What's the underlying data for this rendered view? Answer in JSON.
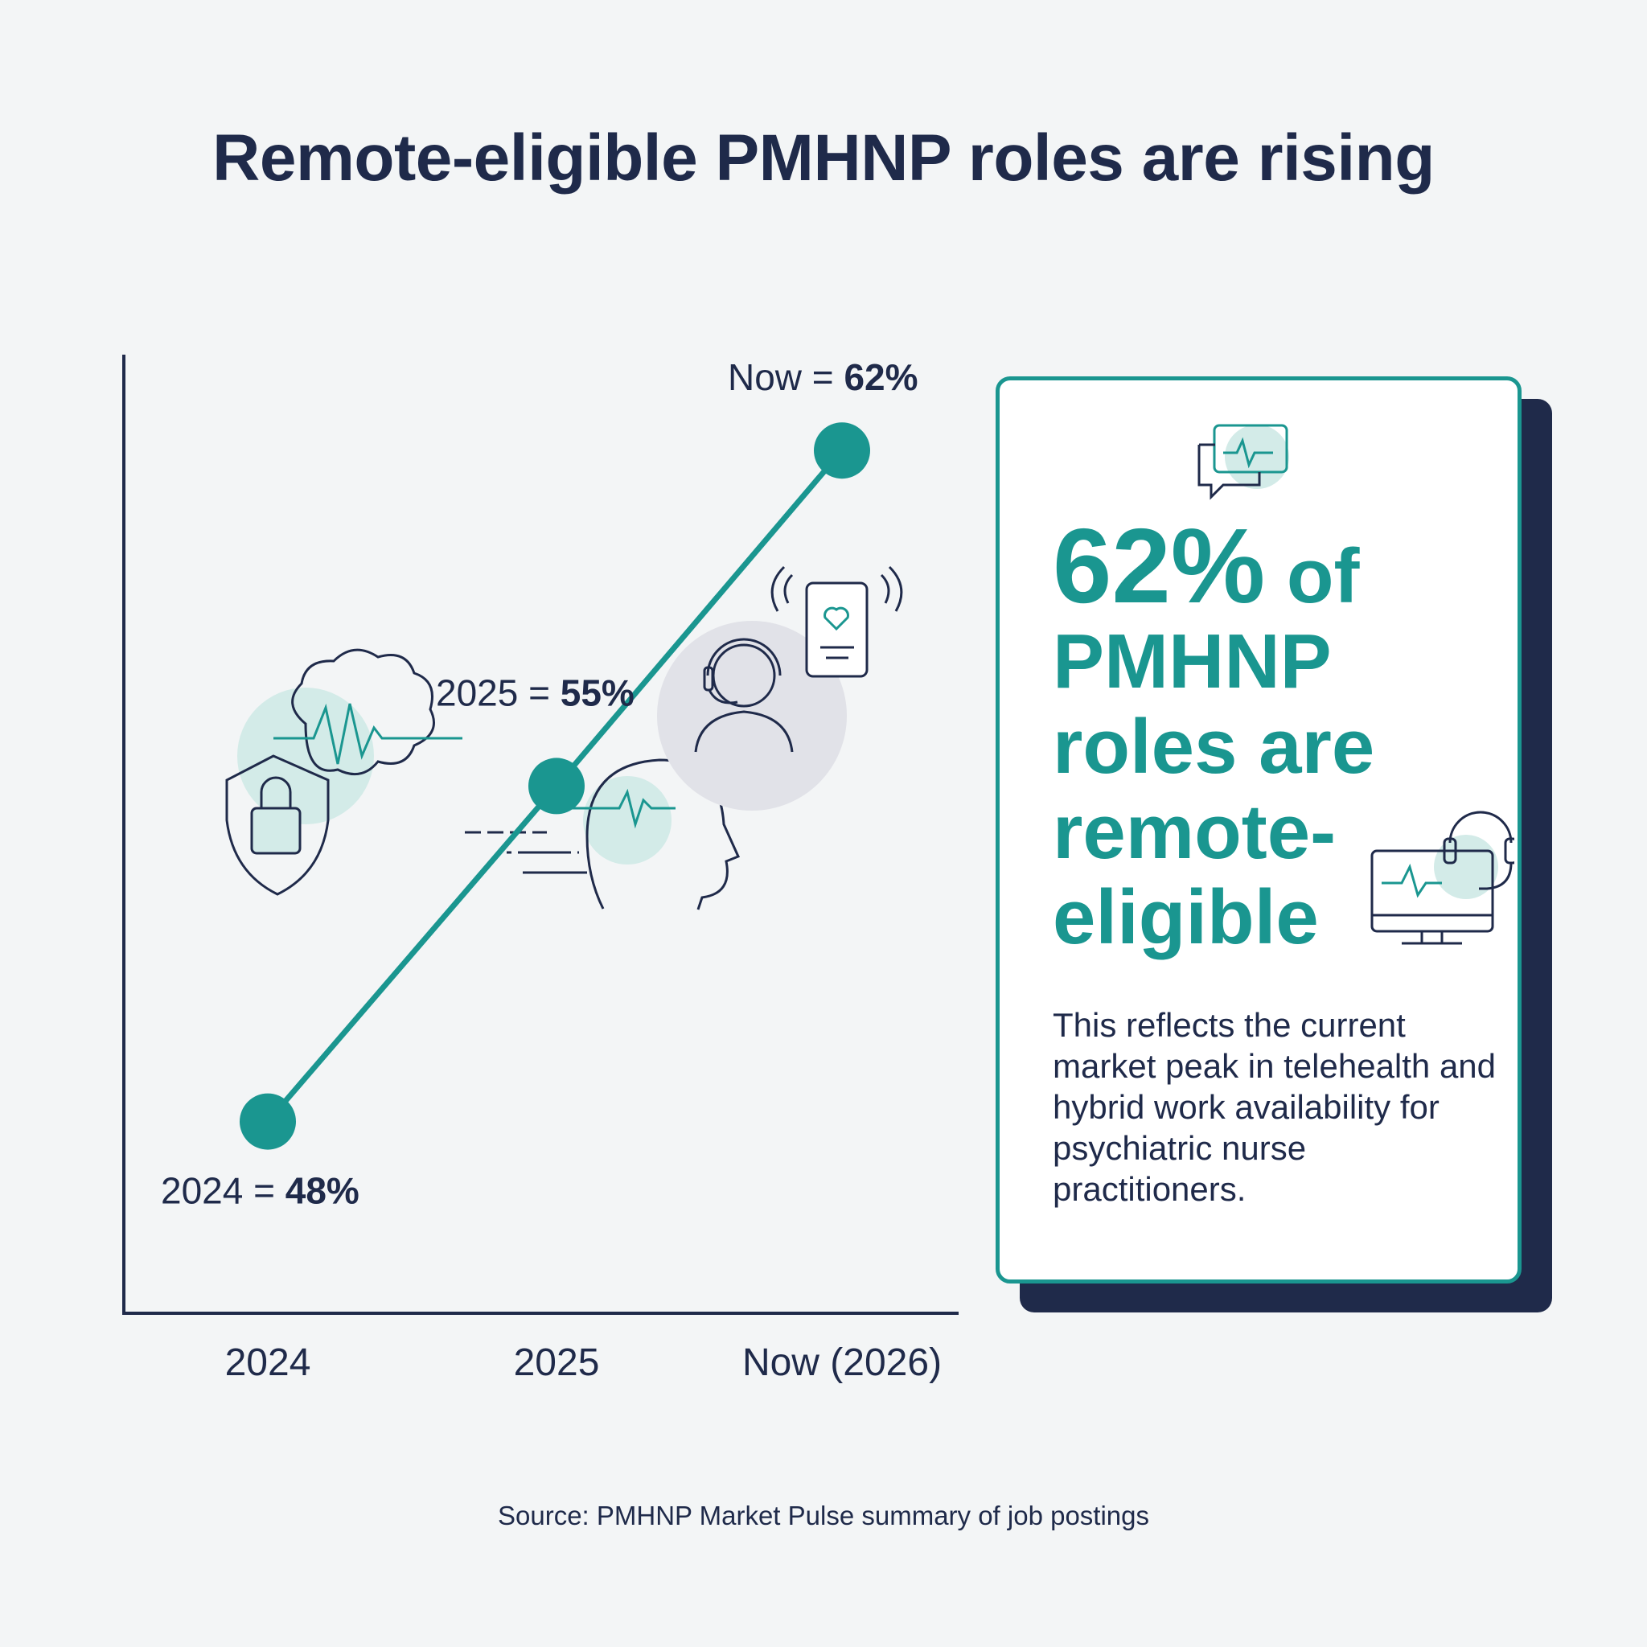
{
  "title": "Remote-eligible PMHNP roles are rising",
  "chart_data": {
    "type": "line",
    "title": "Remote-eligible PMHNP roles are rising",
    "categories": [
      "2024",
      "2025",
      "Now (2026)"
    ],
    "series": [
      {
        "values": [
          48,
          55,
          62
        ]
      }
    ],
    "point_labels": [
      {
        "prefix": "2024 = ",
        "value": "48%"
      },
      {
        "prefix": "2025 = ",
        "value": "55%"
      },
      {
        "prefix": "Now = ",
        "value": "62%"
      }
    ],
    "xlabel": "",
    "ylabel": "",
    "ylim": [
      44,
      64
    ],
    "grid": false,
    "colors": {
      "line": "#1a9690",
      "axis": "#1f2a4a"
    }
  },
  "card": {
    "headline_big": "62%",
    "headline_rest": " of PMHNP roles are remote-eligible",
    "body": "This reflects the current market peak in telehealth and hybrid work availability for psychiatric nurse practitioners.",
    "icons": [
      "chat-heartbeat-icon",
      "monitor-headset-icon"
    ]
  },
  "illustrations": [
    "shield-lock-icon",
    "brain-heartbeat-icon",
    "head-heartbeat-icon",
    "support-agent-icon",
    "phone-heart-icon"
  ],
  "source": "Source: PMHNP Market Pulse summary of job postings"
}
